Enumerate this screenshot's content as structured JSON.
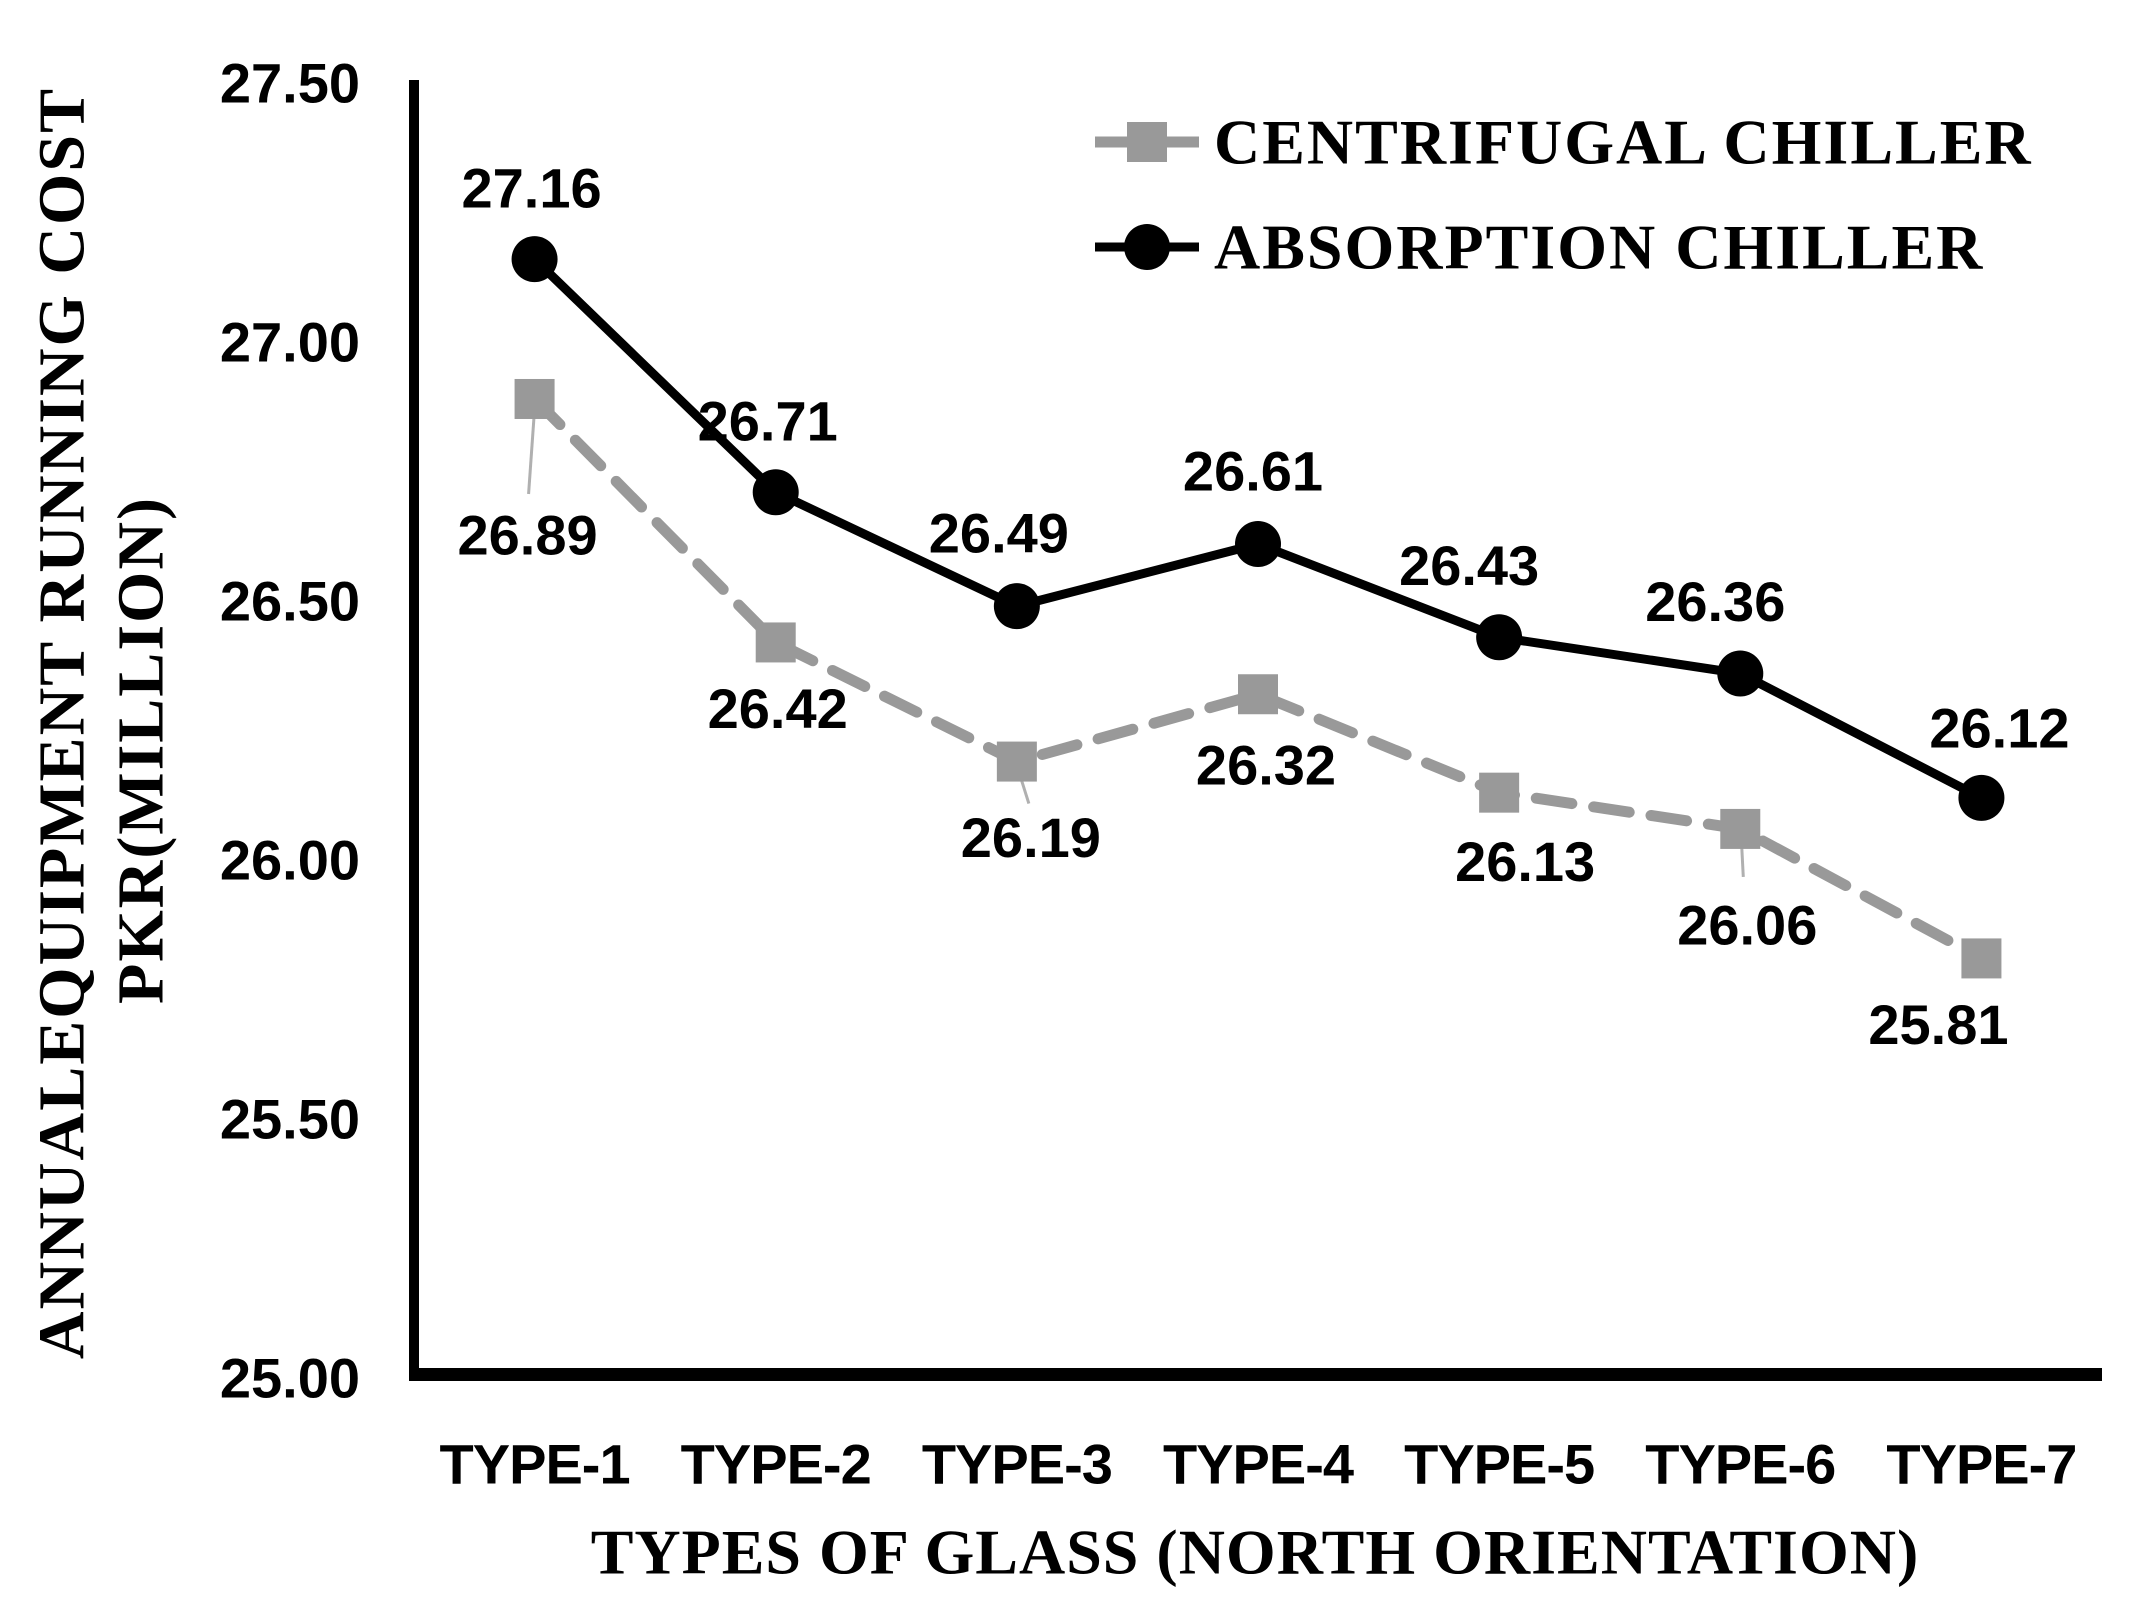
{
  "chart_data": {
    "type": "line",
    "categories": [
      "TYPE-1",
      "TYPE-2",
      "TYPE-3",
      "TYPE-4",
      "TYPE-5",
      "TYPE-6",
      "TYPE-7"
    ],
    "series": [
      {
        "name": "CENTRIFUGAL CHILLER",
        "values": [
          26.89,
          26.42,
          26.19,
          26.32,
          26.13,
          26.06,
          25.81
        ],
        "color": "#999999",
        "line_style": "dashed",
        "marker": "square",
        "label_position": "below"
      },
      {
        "name": "ABSORPTION CHILLER",
        "values": [
          27.16,
          26.71,
          26.49,
          26.61,
          26.43,
          26.36,
          26.12
        ],
        "color": "#000000",
        "line_style": "solid",
        "marker": "circle",
        "label_position": "above"
      }
    ],
    "xlabel": "TYPES OF GLASS (NORTH ORIENTATION)",
    "ylabel_line1": "ANNUALEQUIPMENT RUNNING COST",
    "ylabel_line2": "PKR(MILLION)",
    "ylim": [
      25.0,
      27.5
    ],
    "ytick_step": 0.5,
    "yticks": [
      "27.50",
      "27.00",
      "26.50",
      "26.00",
      "25.50",
      "25.00"
    ],
    "data_labels": true,
    "data_label_decimals": 2,
    "grid": false,
    "legend_position": "top-right",
    "axis_color": "#000000",
    "label_color": "#000000",
    "leader_line_color": "#b0b0b0"
  }
}
